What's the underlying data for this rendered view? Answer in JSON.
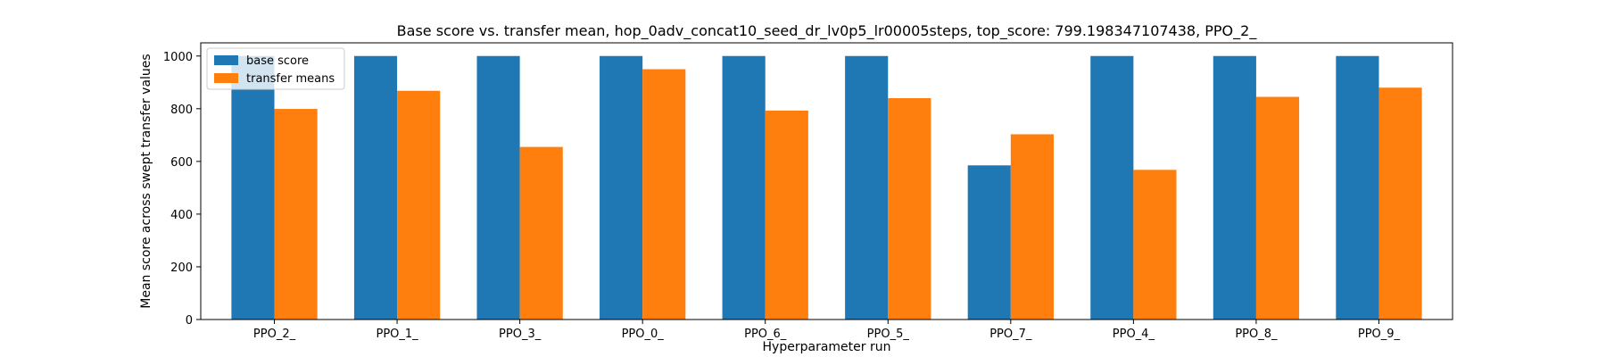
{
  "chart_data": {
    "type": "bar",
    "title": "Base score vs. transfer mean, hop_0adv_concat10_seed_dr_lv0p5_lr00005steps, top_score: 799.198347107438, PPO_2_",
    "xlabel": "Hyperparameter run",
    "ylabel": "Mean score across swept transfer values",
    "categories": [
      "PPO_2_",
      "PPO_1_",
      "PPO_3_",
      "PPO_0_",
      "PPO_6_",
      "PPO_5_",
      "PPO_7_",
      "PPO_4_",
      "PPO_8_",
      "PPO_9_"
    ],
    "series": [
      {
        "name": "base score",
        "color": "#1f77b4",
        "values": [
          1000,
          1000,
          1000,
          1000,
          1000,
          1000,
          585,
          1000,
          1000,
          1000
        ]
      },
      {
        "name": "transfer means",
        "color": "#ff7f0e",
        "values": [
          799.2,
          868,
          655,
          950,
          793,
          840,
          703,
          568,
          845,
          880
        ]
      }
    ],
    "ylim": [
      0,
      1050
    ],
    "yticks": [
      0,
      200,
      400,
      600,
      800,
      1000
    ],
    "grid": false,
    "legend_position": "upper-left"
  }
}
